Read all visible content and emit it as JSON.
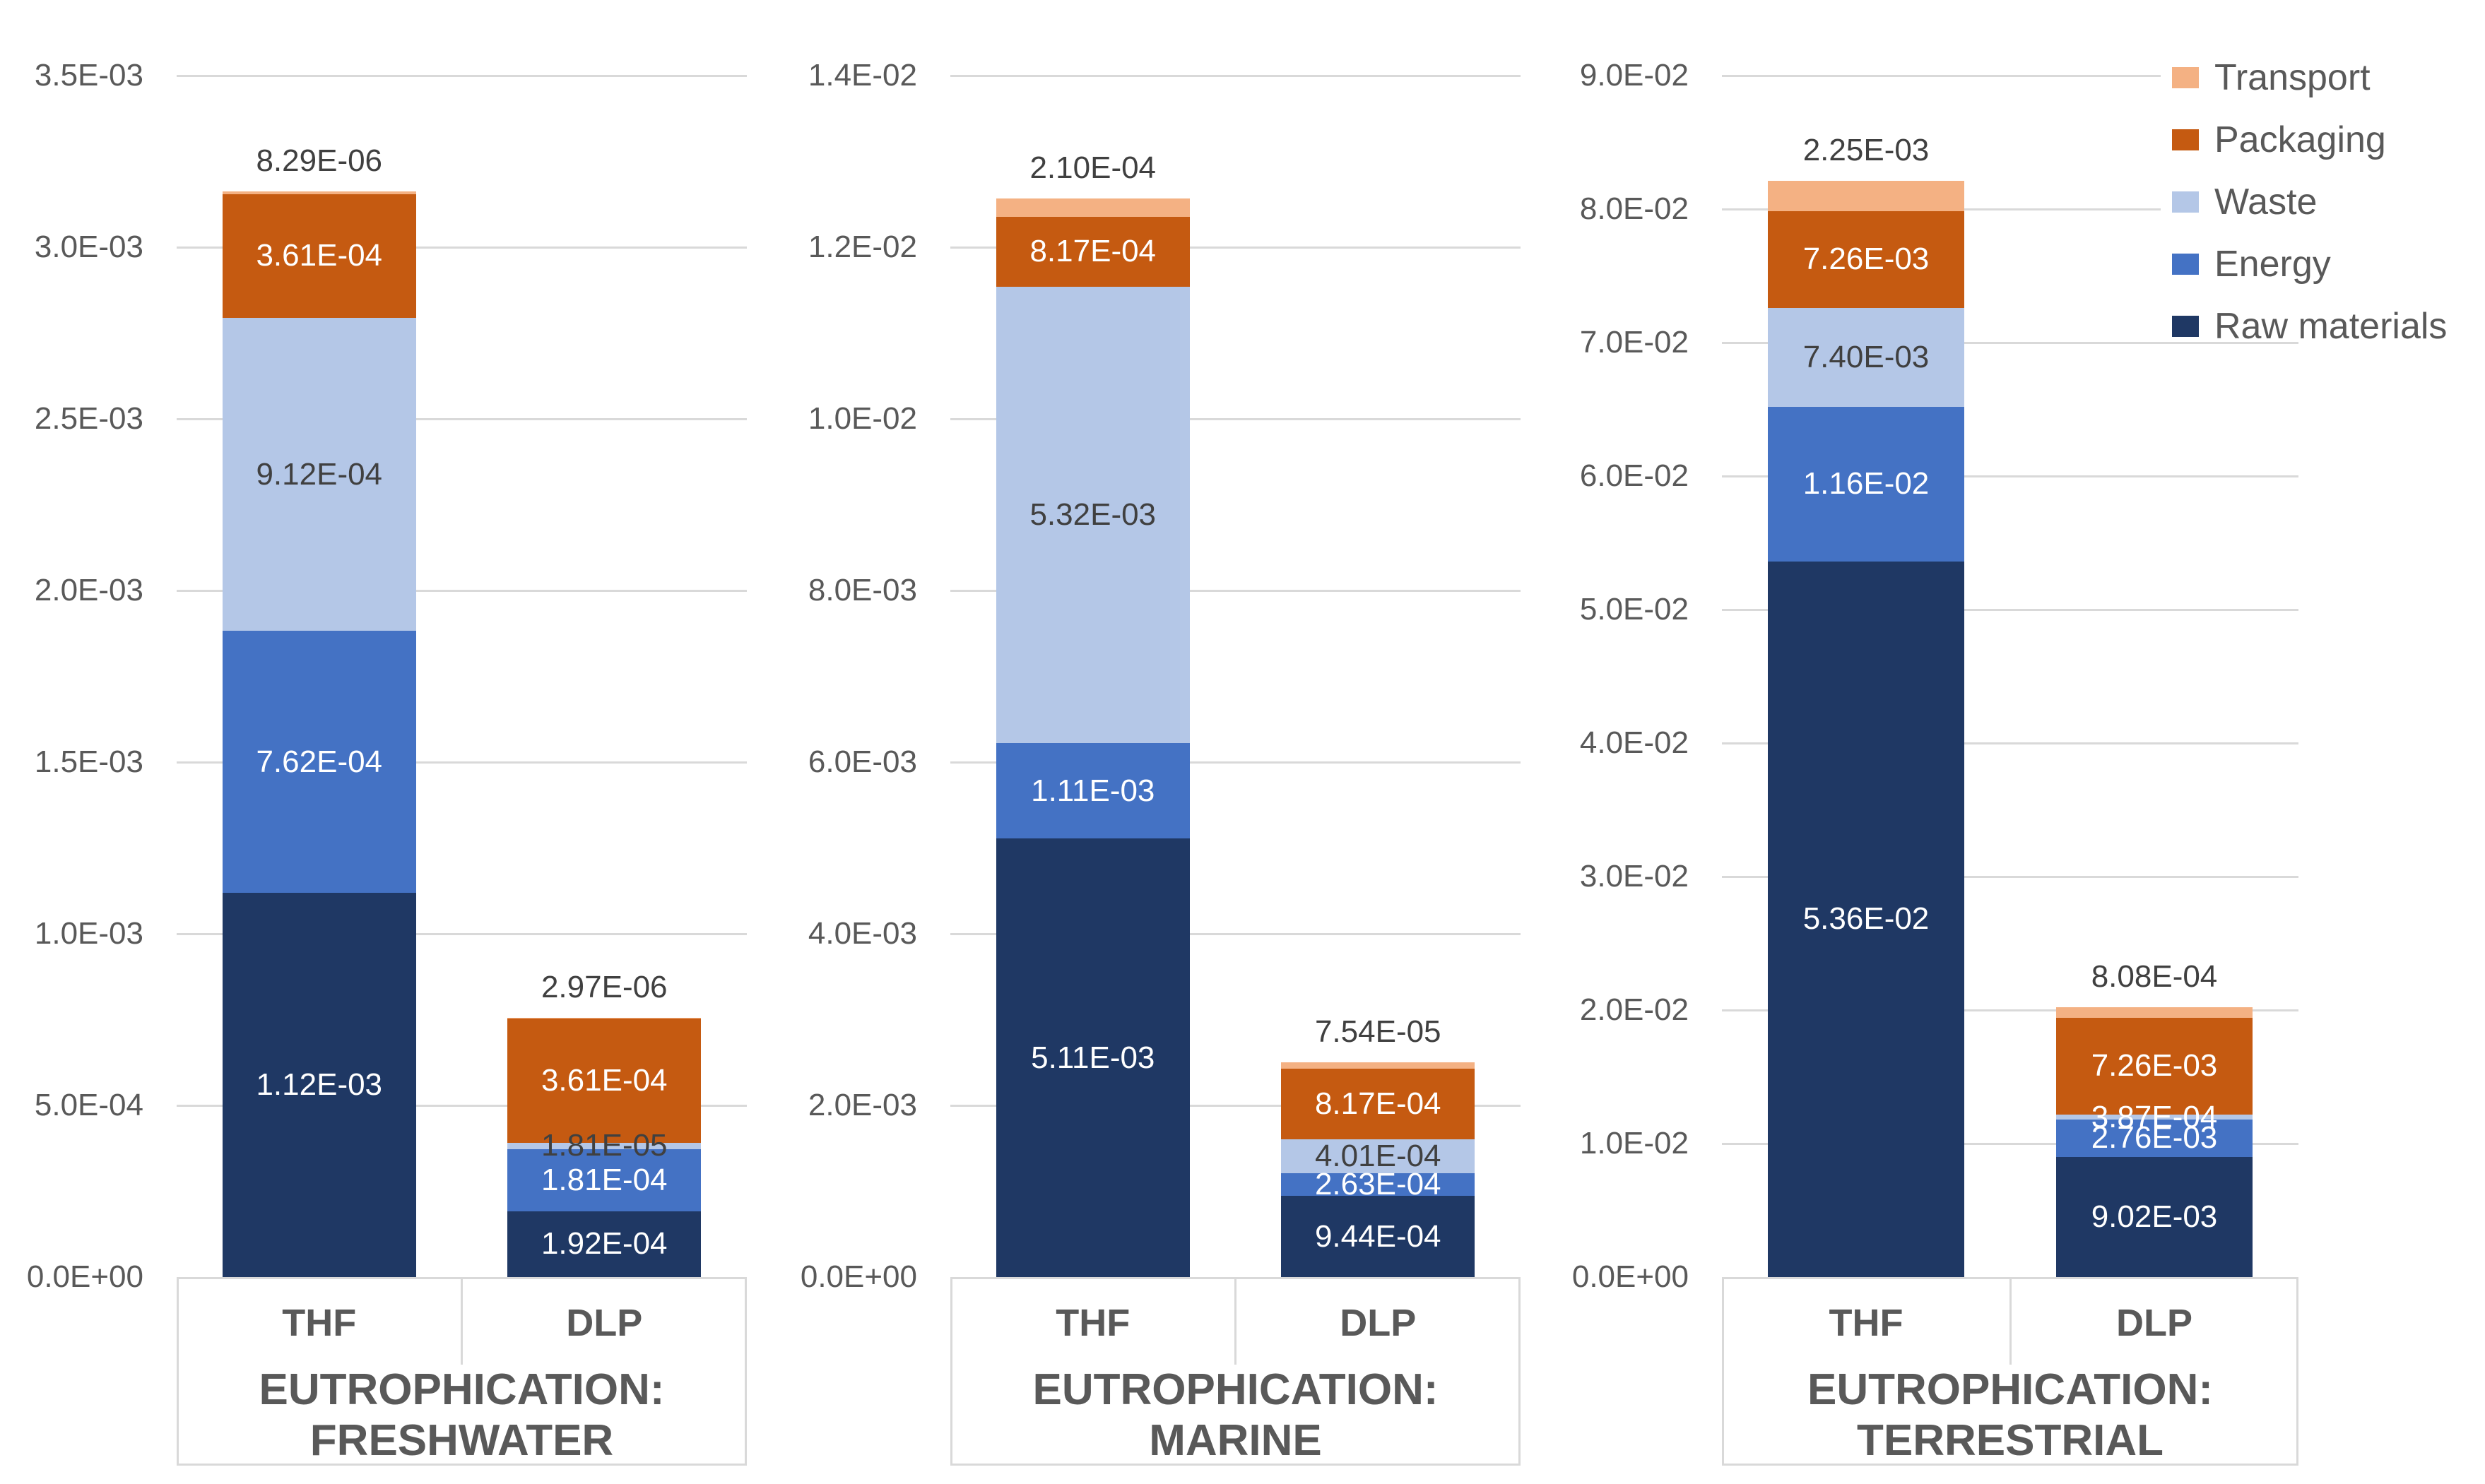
{
  "colors": {
    "background": "#FFFFFF",
    "gridline": "#D9D9D9",
    "box_border": "#D9D9D9",
    "axis_text": "#595959",
    "category_text": "#595959",
    "title_text": "#595959",
    "legend_text": "#595959",
    "label_light": "#FFFFFF",
    "label_dark": "#404040",
    "transport": "#F4B183",
    "packaging": "#C55A11",
    "waste": "#B4C7E7",
    "energy": "#4472C4",
    "raw_materials": "#1F3864"
  },
  "legend": {
    "position": "top-right",
    "items": [
      {
        "label": "Transport",
        "color_key": "transport"
      },
      {
        "label": "Packaging",
        "color_key": "packaging"
      },
      {
        "label": "Waste",
        "color_key": "waste"
      },
      {
        "label": "Energy",
        "color_key": "energy"
      },
      {
        "label": "Raw materials",
        "color_key": "raw_materials"
      }
    ]
  },
  "chart_data": [
    {
      "type": "bar",
      "stacked": true,
      "title": "EUTROPHICATION: FRESHWATER",
      "title_lines": [
        "EUTROPHICATION:",
        "FRESHWATER"
      ],
      "categories": [
        "THF",
        "DLP"
      ],
      "xlabel": "",
      "ylabel": "",
      "ylim": [
        0,
        0.0035
      ],
      "grid": true,
      "yticks": [
        {
          "v": 0,
          "label": "0.0E+00"
        },
        {
          "v": 0.0005,
          "label": "5.0E-04"
        },
        {
          "v": 0.001,
          "label": "1.0E-03"
        },
        {
          "v": 0.0015,
          "label": "1.5E-03"
        },
        {
          "v": 0.002,
          "label": "2.0E-03"
        },
        {
          "v": 0.0025,
          "label": "2.5E-03"
        },
        {
          "v": 0.003,
          "label": "3.0E-03"
        },
        {
          "v": 0.0035,
          "label": "3.5E-03"
        }
      ],
      "series": [
        {
          "name": "Raw materials",
          "color_key": "raw_materials",
          "values": [
            0.00112,
            0.000192
          ],
          "labels": [
            "1.12E-03",
            "1.92E-04"
          ],
          "label_style": [
            "light",
            "light"
          ]
        },
        {
          "name": "Energy",
          "color_key": "energy",
          "values": [
            0.000762,
            0.000181
          ],
          "labels": [
            "7.62E-04",
            "1.81E-04"
          ],
          "label_style": [
            "light",
            "light"
          ]
        },
        {
          "name": "Waste",
          "color_key": "waste",
          "values": [
            0.000912,
            1.81e-05
          ],
          "labels": [
            "9.12E-04",
            "1.81E-05"
          ],
          "label_style": [
            "dark",
            "dark"
          ]
        },
        {
          "name": "Packaging",
          "color_key": "packaging",
          "values": [
            0.000361,
            0.000361
          ],
          "labels": [
            "3.61E-04",
            "3.61E-04"
          ],
          "label_style": [
            "light",
            "light"
          ]
        },
        {
          "name": "Transport",
          "color_key": "transport",
          "values": [
            8.29e-06,
            2.97e-06
          ],
          "labels": [
            "8.29E-06",
            "2.97E-06"
          ],
          "label_style": [
            "above",
            "above"
          ]
        }
      ]
    },
    {
      "type": "bar",
      "stacked": true,
      "title": "EUTROPHICATION: MARINE",
      "title_lines": [
        "EUTROPHICATION: MARINE"
      ],
      "categories": [
        "THF",
        "DLP"
      ],
      "xlabel": "",
      "ylabel": "",
      "ylim": [
        0,
        0.014
      ],
      "grid": true,
      "yticks": [
        {
          "v": 0,
          "label": "0.0E+00"
        },
        {
          "v": 0.002,
          "label": "2.0E-03"
        },
        {
          "v": 0.004,
          "label": "4.0E-03"
        },
        {
          "v": 0.006,
          "label": "6.0E-03"
        },
        {
          "v": 0.008,
          "label": "8.0E-03"
        },
        {
          "v": 0.01,
          "label": "1.0E-02"
        },
        {
          "v": 0.012,
          "label": "1.2E-02"
        },
        {
          "v": 0.014,
          "label": "1.4E-02"
        }
      ],
      "series": [
        {
          "name": "Raw materials",
          "color_key": "raw_materials",
          "values": [
            0.00511,
            0.000944
          ],
          "labels": [
            "5.11E-03",
            "9.44E-04"
          ],
          "label_style": [
            "light",
            "light"
          ]
        },
        {
          "name": "Energy",
          "color_key": "energy",
          "values": [
            0.00111,
            0.000263
          ],
          "labels": [
            "1.11E-03",
            "2.63E-04"
          ],
          "label_style": [
            "light",
            "light"
          ]
        },
        {
          "name": "Waste",
          "color_key": "waste",
          "values": [
            0.00532,
            0.000401
          ],
          "labels": [
            "5.32E-03",
            "4.01E-04"
          ],
          "label_style": [
            "dark",
            "dark"
          ]
        },
        {
          "name": "Packaging",
          "color_key": "packaging",
          "values": [
            0.000817,
            0.000817
          ],
          "labels": [
            "8.17E-04",
            "8.17E-04"
          ],
          "label_style": [
            "light",
            "light"
          ]
        },
        {
          "name": "Transport",
          "color_key": "transport",
          "values": [
            0.00021,
            7.54e-05
          ],
          "labels": [
            "2.10E-04",
            "7.54E-05"
          ],
          "label_style": [
            "above",
            "above"
          ]
        }
      ]
    },
    {
      "type": "bar",
      "stacked": true,
      "title": "EUTROPHICATION: TERRESTRIAL",
      "title_lines": [
        "EUTROPHICATION:",
        "TERRESTRIAL"
      ],
      "categories": [
        "THF",
        "DLP"
      ],
      "xlabel": "",
      "ylabel": "",
      "ylim": [
        0,
        0.09
      ],
      "grid": true,
      "yticks": [
        {
          "v": 0,
          "label": "0.0E+00"
        },
        {
          "v": 0.01,
          "label": "1.0E-02"
        },
        {
          "v": 0.02,
          "label": "2.0E-02"
        },
        {
          "v": 0.03,
          "label": "3.0E-02"
        },
        {
          "v": 0.04,
          "label": "4.0E-02"
        },
        {
          "v": 0.05,
          "label": "5.0E-02"
        },
        {
          "v": 0.06,
          "label": "6.0E-02"
        },
        {
          "v": 0.07,
          "label": "7.0E-02"
        },
        {
          "v": 0.08,
          "label": "8.0E-02"
        },
        {
          "v": 0.09,
          "label": "9.0E-02"
        }
      ],
      "series": [
        {
          "name": "Raw materials",
          "color_key": "raw_materials",
          "values": [
            0.0536,
            0.00902
          ],
          "labels": [
            "5.36E-02",
            "9.02E-03"
          ],
          "label_style": [
            "light",
            "light"
          ]
        },
        {
          "name": "Energy",
          "color_key": "energy",
          "values": [
            0.0116,
            0.00276
          ],
          "labels": [
            "1.16E-02",
            "2.76E-03"
          ],
          "label_style": [
            "light",
            "light"
          ]
        },
        {
          "name": "Waste",
          "color_key": "waste",
          "values": [
            0.0074,
            0.000387
          ],
          "labels": [
            "7.40E-03",
            "3.87E-04"
          ],
          "label_style": [
            "dark",
            "light"
          ]
        },
        {
          "name": "Packaging",
          "color_key": "packaging",
          "values": [
            0.00726,
            0.00726
          ],
          "labels": [
            "7.26E-03",
            "7.26E-03"
          ],
          "label_style": [
            "light",
            "light"
          ]
        },
        {
          "name": "Transport",
          "color_key": "transport",
          "values": [
            0.00225,
            0.000808
          ],
          "labels": [
            "2.25E-03",
            "8.08E-04"
          ],
          "label_style": [
            "above",
            "above"
          ]
        }
      ]
    }
  ]
}
